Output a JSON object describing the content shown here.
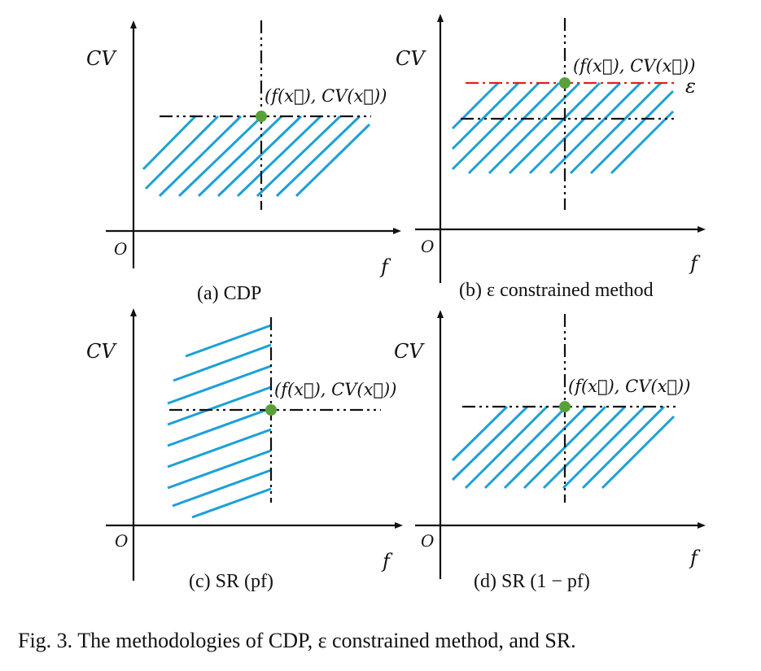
{
  "panels": [
    {
      "id": "a",
      "y_axis_label": "CV",
      "x_axis_label": "f",
      "origin_label": "O",
      "point_label": "(f(x⃗), CV(x⃗))",
      "caption": "(a) CDP"
    },
    {
      "id": "b",
      "y_axis_label": "CV",
      "x_axis_label": "f",
      "origin_label": "O",
      "point_label": "(f(x⃗), CV(x⃗))",
      "epsilon_label": "ε",
      "caption": "(b) ε constrained method"
    },
    {
      "id": "c",
      "y_axis_label": "CV",
      "x_axis_label": "f",
      "origin_label": "O",
      "point_label": "(f(x⃗), CV(x⃗))",
      "caption": "(c) SR (pf)"
    },
    {
      "id": "d",
      "y_axis_label": "CV",
      "x_axis_label": "f",
      "origin_label": "O",
      "point_label": "(f(x⃗), CV(x⃗))",
      "caption": "(d) SR (1 − pf)"
    }
  ],
  "figure_caption": "Fig. 3.  The methodologies of CDP, ε constrained method, and SR.",
  "colors": {
    "hatch": "#1ba0d8",
    "point": "#5aa03a",
    "epsilon_line": "#e02020",
    "axis": "#111111"
  }
}
